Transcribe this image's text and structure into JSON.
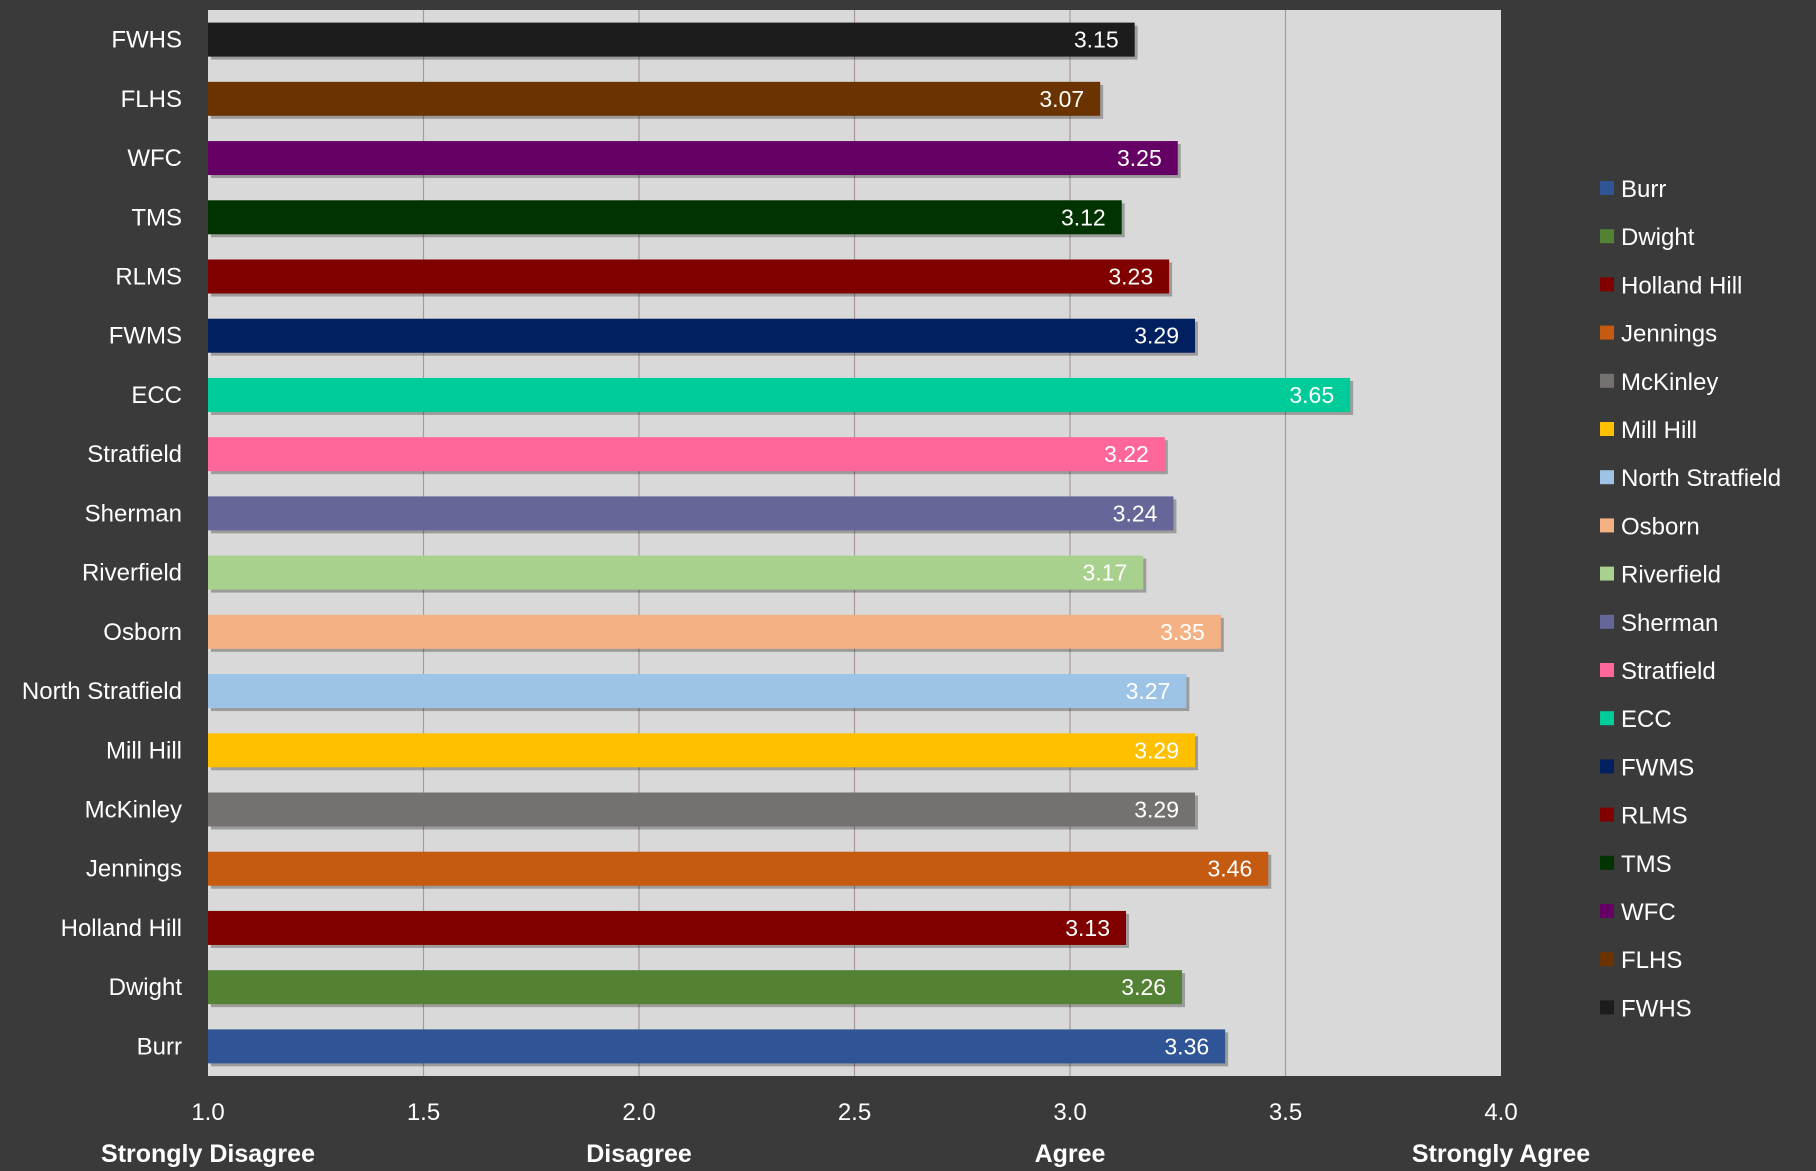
{
  "chart_data": {
    "type": "bar",
    "orientation": "horizontal",
    "categories": [
      "FWHS",
      "FLHS",
      "WFC",
      "TMS",
      "RLMS",
      "FWMS",
      "ECC",
      "Stratfield",
      "Sherman",
      "Riverfield",
      "Osborn",
      "North Stratfield",
      "Mill Hill",
      "McKinley",
      "Jennings",
      "Holland Hill",
      "Dwight",
      "Burr"
    ],
    "values": [
      3.15,
      3.07,
      3.25,
      3.12,
      3.23,
      3.29,
      3.65,
      3.22,
      3.24,
      3.17,
      3.35,
      3.27,
      3.29,
      3.29,
      3.46,
      3.13,
      3.26,
      3.36
    ],
    "value_labels": [
      "3.15",
      "3.07",
      "3.25",
      "3.12",
      "3.23",
      "3.29",
      "3.65",
      "3.22",
      "3.24",
      "3.17",
      "3.35",
      "3.27",
      "3.29",
      "3.29",
      "3.46",
      "3.13",
      "3.26",
      "3.36"
    ],
    "colors": [
      "#1c1c1c",
      "#6b3300",
      "#650065",
      "#003300",
      "#800000",
      "#00205f",
      "#00cc99",
      "#ff6699",
      "#666699",
      "#a9d18e",
      "#f4b183",
      "#9dc3e6",
      "#ffc000",
      "#767171",
      "#c55a11",
      "#800000",
      "#548235",
      "#2f5597"
    ],
    "xlim": [
      1.0,
      4.0
    ],
    "x_ticks": [
      1.0,
      1.5,
      2.0,
      2.5,
      3.0,
      3.5,
      4.0
    ],
    "x_tick_labels": [
      "1.0",
      "1.5",
      "2.0",
      "2.5",
      "3.0",
      "3.5",
      "4.0"
    ],
    "scale_labels": [
      {
        "value": 1.0,
        "text": "Strongly Disagree"
      },
      {
        "value": 2.0,
        "text": "Disagree"
      },
      {
        "value": 3.0,
        "text": "Agree"
      },
      {
        "value": 4.0,
        "text": "Strongly Agree"
      }
    ],
    "grid": true,
    "legend_position": "right",
    "legend": [
      {
        "name": "Burr",
        "color": "#2f5597"
      },
      {
        "name": "Dwight",
        "color": "#548235"
      },
      {
        "name": "Holland Hill",
        "color": "#800000"
      },
      {
        "name": "Jennings",
        "color": "#c55a11"
      },
      {
        "name": "McKinley",
        "color": "#767171"
      },
      {
        "name": "Mill Hill",
        "color": "#ffc000"
      },
      {
        "name": "North Stratfield",
        "color": "#9dc3e6"
      },
      {
        "name": "Osborn",
        "color": "#f4b183"
      },
      {
        "name": "Riverfield",
        "color": "#a9d18e"
      },
      {
        "name": "Sherman",
        "color": "#666699"
      },
      {
        "name": "Stratfield",
        "color": "#ff6699"
      },
      {
        "name": "ECC",
        "color": "#00cc99"
      },
      {
        "name": "FWMS",
        "color": "#00205f"
      },
      {
        "name": "RLMS",
        "color": "#800000"
      },
      {
        "name": "TMS",
        "color": "#003300"
      },
      {
        "name": "WFC",
        "color": "#650065"
      },
      {
        "name": "FLHS",
        "color": "#6b3300"
      },
      {
        "name": "FWHS",
        "color": "#1c1c1c"
      }
    ],
    "plot_background": "#d9d9d9",
    "page_background": "#3a3a3a"
  }
}
